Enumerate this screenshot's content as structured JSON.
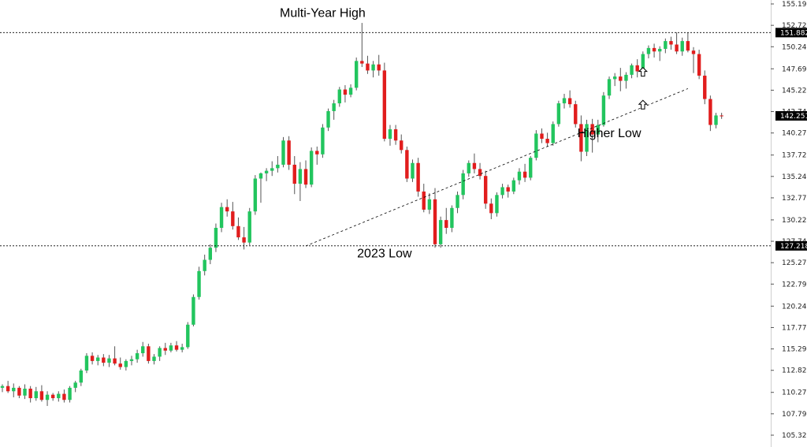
{
  "chart_data": {
    "type": "candlestick",
    "y_ticks": [
      "155.195",
      "152.720",
      "150.245",
      "147.695",
      "145.220",
      "142.745",
      "140.270",
      "137.720",
      "135.245",
      "132.770",
      "130.220",
      "127.745",
      "125.270",
      "122.795",
      "120.245",
      "117.770",
      "115.295",
      "112.820",
      "110.270",
      "107.795",
      "105.320"
    ],
    "ylim": [
      105.32,
      155.195
    ],
    "grid": false,
    "levels": [
      {
        "value": 151.882,
        "label": "151.882"
      },
      {
        "value": 127.218,
        "label": "127.218"
      }
    ],
    "last_price": {
      "value": 142.251,
      "label": "142.251"
    },
    "trendline": {
      "from": {
        "index": 54,
        "value": 127.2
      },
      "to": {
        "index": 122,
        "value": 145.4
      }
    },
    "annotations": [
      {
        "id": "multi-year-high",
        "text": "Multi-Year High",
        "index": 57,
        "value": 153.7
      },
      {
        "id": "2023-low",
        "text": "2023 Low",
        "index": 68,
        "value": 125.9
      },
      {
        "id": "higher-low",
        "text": "Higher Low",
        "index": 108,
        "value": 139.8
      }
    ],
    "arrows": [
      {
        "index": 114,
        "value": 147.3
      },
      {
        "index": 114,
        "value": 143.5
      }
    ],
    "colors": {
      "up": "#22c55e",
      "down": "#e11d1d",
      "wick": "#555555",
      "level": "#000000"
    },
    "candles": [
      [
        110.8,
        111.2,
        110.3,
        111.0
      ],
      [
        111.0,
        111.6,
        110.2,
        110.4
      ],
      [
        110.4,
        111.3,
        109.7,
        110.8
      ],
      [
        110.8,
        111.0,
        109.6,
        109.9
      ],
      [
        109.9,
        111.2,
        109.5,
        110.7
      ],
      [
        110.7,
        111.0,
        109.1,
        109.6
      ],
      [
        109.6,
        110.9,
        109.3,
        110.4
      ],
      [
        110.4,
        111.1,
        109.2,
        109.4
      ],
      [
        109.4,
        110.4,
        108.7,
        110.0
      ],
      [
        110.0,
        110.2,
        109.3,
        109.6
      ],
      [
        109.6,
        110.4,
        109.2,
        110.1
      ],
      [
        110.1,
        110.6,
        109.1,
        109.4
      ],
      [
        109.4,
        111.0,
        109.1,
        110.8
      ],
      [
        110.8,
        111.6,
        110.3,
        111.4
      ],
      [
        111.4,
        113.0,
        111.0,
        112.8
      ],
      [
        112.8,
        114.8,
        112.5,
        114.5
      ],
      [
        114.5,
        114.9,
        113.5,
        113.9
      ],
      [
        113.9,
        114.6,
        113.4,
        114.3
      ],
      [
        114.3,
        114.7,
        113.3,
        113.7
      ],
      [
        113.7,
        114.6,
        113.2,
        114.2
      ],
      [
        114.2,
        115.6,
        113.4,
        113.6
      ],
      [
        113.6,
        114.3,
        112.9,
        113.2
      ],
      [
        113.2,
        114.1,
        112.8,
        113.9
      ],
      [
        113.9,
        114.5,
        113.4,
        114.1
      ],
      [
        114.1,
        115.2,
        113.7,
        114.8
      ],
      [
        114.8,
        116.1,
        114.4,
        115.6
      ],
      [
        115.6,
        115.9,
        113.6,
        113.9
      ],
      [
        113.9,
        114.7,
        113.5,
        114.4
      ],
      [
        114.4,
        115.6,
        113.9,
        115.4
      ],
      [
        115.4,
        116.0,
        114.6,
        115.1
      ],
      [
        115.1,
        116.0,
        114.9,
        115.7
      ],
      [
        115.7,
        116.2,
        115.0,
        115.2
      ],
      [
        115.2,
        115.9,
        114.9,
        115.5
      ],
      [
        115.5,
        118.4,
        115.3,
        118.1
      ],
      [
        118.1,
        121.6,
        117.9,
        121.3
      ],
      [
        121.3,
        124.8,
        121.0,
        124.3
      ],
      [
        124.3,
        126.2,
        123.8,
        125.6
      ],
      [
        125.6,
        127.4,
        125.1,
        127.0
      ],
      [
        127.0,
        129.8,
        126.5,
        129.3
      ],
      [
        129.3,
        132.2,
        128.8,
        131.7
      ],
      [
        131.7,
        132.6,
        130.6,
        131.2
      ],
      [
        131.2,
        132.3,
        129.1,
        129.5
      ],
      [
        129.5,
        130.5,
        127.9,
        128.2
      ],
      [
        128.2,
        129.4,
        126.8,
        127.6
      ],
      [
        127.6,
        131.6,
        127.3,
        131.2
      ],
      [
        131.2,
        135.4,
        130.8,
        135.0
      ],
      [
        135.0,
        135.7,
        132.2,
        135.6
      ],
      [
        135.6,
        136.2,
        134.7,
        135.9
      ],
      [
        135.9,
        137.0,
        135.3,
        136.2
      ],
      [
        136.2,
        137.6,
        135.7,
        136.6
      ],
      [
        136.6,
        139.8,
        136.3,
        139.4
      ],
      [
        139.4,
        139.9,
        136.0,
        136.6
      ],
      [
        136.6,
        137.6,
        133.2,
        134.4
      ],
      [
        134.4,
        136.9,
        132.4,
        136.1
      ],
      [
        136.1,
        137.1,
        133.9,
        134.3
      ],
      [
        134.3,
        138.6,
        134.0,
        138.2
      ],
      [
        138.2,
        138.7,
        136.6,
        137.8
      ],
      [
        137.8,
        141.3,
        137.4,
        140.9
      ],
      [
        140.9,
        143.1,
        140.5,
        142.8
      ],
      [
        142.8,
        144.1,
        141.8,
        143.7
      ],
      [
        143.7,
        145.6,
        143.3,
        145.3
      ],
      [
        145.3,
        145.8,
        143.8,
        144.7
      ],
      [
        144.7,
        145.9,
        144.4,
        145.5
      ],
      [
        145.5,
        149.0,
        145.2,
        148.6
      ],
      [
        148.6,
        153.0,
        147.9,
        148.3
      ],
      [
        148.3,
        149.2,
        147.1,
        147.5
      ],
      [
        147.5,
        148.6,
        146.7,
        148.2
      ],
      [
        148.2,
        149.3,
        146.9,
        147.5
      ],
      [
        147.5,
        148.4,
        139.3,
        139.6
      ],
      [
        139.6,
        141.2,
        138.8,
        140.7
      ],
      [
        140.7,
        141.2,
        138.9,
        139.4
      ],
      [
        139.4,
        140.1,
        137.9,
        138.3
      ],
      [
        138.3,
        138.7,
        134.6,
        135.0
      ],
      [
        135.0,
        137.2,
        134.6,
        136.8
      ],
      [
        136.8,
        137.4,
        132.9,
        133.5
      ],
      [
        133.5,
        134.4,
        131.1,
        131.4
      ],
      [
        131.4,
        133.3,
        130.9,
        132.6
      ],
      [
        132.6,
        133.9,
        127.0,
        127.4
      ],
      [
        127.4,
        130.6,
        127.0,
        130.2
      ],
      [
        130.2,
        131.6,
        128.6,
        129.3
      ],
      [
        129.3,
        131.9,
        128.8,
        131.6
      ],
      [
        131.6,
        133.5,
        131.0,
        133.1
      ],
      [
        133.1,
        136.0,
        132.6,
        135.6
      ],
      [
        135.6,
        137.1,
        135.2,
        136.8
      ],
      [
        136.8,
        137.9,
        135.6,
        136.1
      ],
      [
        136.1,
        136.8,
        134.9,
        135.3
      ],
      [
        135.3,
        135.9,
        131.5,
        132.1
      ],
      [
        132.1,
        132.7,
        130.3,
        131.0
      ],
      [
        131.0,
        133.4,
        130.6,
        133.1
      ],
      [
        133.1,
        134.4,
        132.7,
        134.0
      ],
      [
        134.0,
        134.3,
        132.8,
        133.5
      ],
      [
        133.5,
        135.1,
        133.2,
        134.8
      ],
      [
        134.8,
        136.2,
        134.3,
        135.8
      ],
      [
        135.8,
        136.7,
        134.6,
        135.1
      ],
      [
        135.1,
        137.6,
        134.8,
        137.4
      ],
      [
        137.4,
        140.6,
        137.1,
        140.2
      ],
      [
        140.2,
        140.8,
        139.1,
        139.6
      ],
      [
        139.6,
        140.3,
        138.7,
        139.1
      ],
      [
        139.1,
        141.6,
        138.8,
        141.3
      ],
      [
        141.3,
        144.0,
        141.0,
        143.7
      ],
      [
        143.7,
        144.8,
        143.1,
        144.3
      ],
      [
        144.3,
        145.2,
        143.2,
        143.6
      ],
      [
        143.6,
        144.0,
        140.9,
        141.3
      ],
      [
        141.3,
        142.3,
        137.0,
        138.1
      ],
      [
        138.1,
        141.8,
        137.6,
        141.3
      ],
      [
        141.3,
        141.9,
        138.0,
        140.1
      ],
      [
        140.1,
        141.8,
        139.2,
        141.2
      ],
      [
        141.2,
        145.0,
        141.0,
        144.6
      ],
      [
        144.6,
        146.8,
        144.2,
        146.5
      ],
      [
        146.5,
        147.2,
        145.7,
        146.8
      ],
      [
        146.8,
        147.8,
        145.1,
        146.3
      ],
      [
        146.3,
        147.3,
        145.4,
        147.0
      ],
      [
        147.0,
        148.3,
        146.6,
        148.1
      ],
      [
        148.1,
        148.8,
        146.7,
        147.4
      ],
      [
        147.4,
        149.7,
        147.1,
        149.4
      ],
      [
        149.4,
        150.4,
        148.9,
        150.1
      ],
      [
        150.1,
        150.6,
        149.0,
        149.7
      ],
      [
        149.7,
        150.3,
        148.6,
        150.0
      ],
      [
        150.0,
        151.2,
        149.5,
        150.9
      ],
      [
        150.9,
        151.4,
        149.9,
        150.5
      ],
      [
        150.5,
        151.9,
        149.4,
        149.7
      ],
      [
        149.7,
        151.3,
        149.2,
        150.9
      ],
      [
        150.9,
        151.9,
        149.6,
        149.8
      ],
      [
        149.8,
        150.2,
        147.2,
        149.4
      ],
      [
        149.4,
        149.9,
        146.5,
        146.9
      ],
      [
        146.9,
        147.5,
        143.6,
        144.2
      ],
      [
        144.2,
        144.6,
        140.5,
        141.2
      ],
      [
        141.2,
        142.6,
        140.8,
        142.3
      ],
      [
        142.3,
        142.6,
        141.9,
        142.2
      ]
    ]
  }
}
